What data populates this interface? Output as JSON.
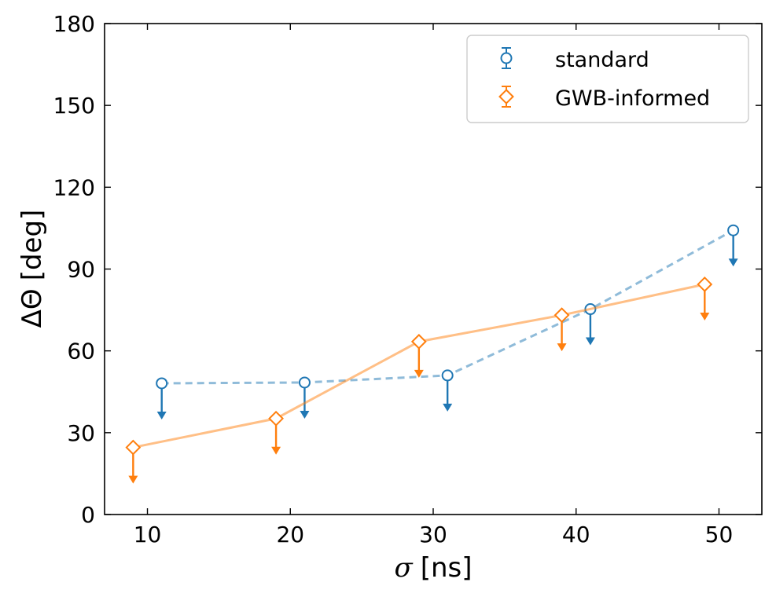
{
  "chart_data": {
    "type": "line",
    "title": "",
    "xlabel_symbol": "σ",
    "xlabel_unit": "[ns]",
    "ylabel_symbol": "ΔΘ",
    "ylabel_unit": "[deg]",
    "xlim": [
      7,
      53
    ],
    "ylim": [
      0,
      180
    ],
    "xticks": [
      10,
      20,
      30,
      40,
      50
    ],
    "yticks": [
      0,
      30,
      60,
      90,
      120,
      150,
      180
    ],
    "grid": false,
    "legend_position": "upper-right",
    "series": [
      {
        "name": "standard",
        "color": "#1f77b4",
        "marker": "circle",
        "line_style": "dashed",
        "upper_limit": true,
        "x": [
          11,
          21,
          31,
          41,
          51
        ],
        "y": [
          48.1,
          48.4,
          51.0,
          75.3,
          104.2
        ]
      },
      {
        "name": "GWB-informed",
        "color": "#ff7f0e",
        "marker": "diamond",
        "line_style": "solid",
        "upper_limit": true,
        "x": [
          9,
          19,
          29,
          39,
          49
        ],
        "y": [
          24.6,
          35.2,
          63.4,
          73.1,
          84.4
        ]
      }
    ]
  }
}
